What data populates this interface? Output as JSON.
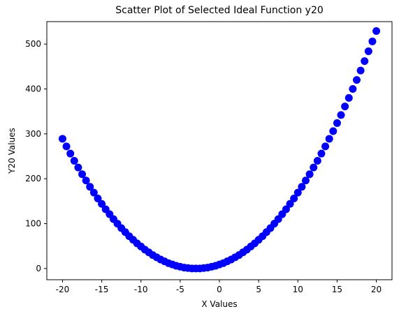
{
  "chart_data": {
    "type": "scatter",
    "title": "Scatter Plot of Selected Ideal Function y20",
    "xlabel": "X Values",
    "ylabel": "Y20 Values",
    "xlim": [
      -22,
      22
    ],
    "ylim": [
      -25,
      550
    ],
    "xticks": [
      "-20",
      "-15",
      "-10",
      "-5",
      "0",
      "5",
      "10",
      "15",
      "20"
    ],
    "yticks": [
      "0",
      "100",
      "200",
      "300",
      "400",
      "500"
    ],
    "grid": false,
    "legend": "none",
    "marker_color": "#0000ff",
    "series": [
      {
        "x": [
          -20,
          -19.5,
          -19,
          -18.5,
          -18,
          -17.5,
          -17,
          -16.5,
          -16,
          -15.5,
          -15,
          -14.5,
          -14,
          -13.5,
          -13,
          -12.5,
          -12,
          -11.5,
          -11,
          -10.5,
          -10,
          -9.5,
          -9,
          -8.5,
          -8,
          -7.5,
          -7,
          -6.5,
          -6,
          -5.5,
          -5,
          -4.5,
          -4,
          -3.5,
          -3,
          -2.5,
          -2,
          -1.5,
          -1,
          -0.5,
          0,
          0.5,
          1,
          1.5,
          2,
          2.5,
          3,
          3.5,
          4,
          4.5,
          5,
          5.5,
          6,
          6.5,
          7,
          7.5,
          8,
          8.5,
          9,
          9.5,
          10,
          10.5,
          11,
          11.5,
          12,
          12.5,
          13,
          13.5,
          14,
          14.5,
          15,
          15.5,
          16,
          16.5,
          17,
          17.5,
          18,
          18.5,
          19,
          19.5,
          20
        ],
        "y": [
          289,
          272,
          256,
          240,
          225,
          210,
          196,
          182,
          169,
          156,
          144,
          132,
          121,
          110,
          100,
          90,
          81,
          72,
          64,
          56,
          49,
          42,
          36,
          30,
          25,
          20,
          16,
          12,
          9,
          6,
          4,
          2,
          1,
          0,
          0,
          0,
          1,
          2,
          4,
          6,
          9,
          12,
          16,
          20,
          25,
          30,
          36,
          42,
          49,
          56,
          64,
          72,
          81,
          90,
          100,
          110,
          121,
          132,
          144,
          156,
          169,
          182,
          196,
          210,
          225,
          240,
          256,
          272,
          289,
          306,
          324,
          342,
          361,
          380,
          400,
          420,
          441,
          462,
          484,
          506,
          529
        ]
      }
    ]
  }
}
